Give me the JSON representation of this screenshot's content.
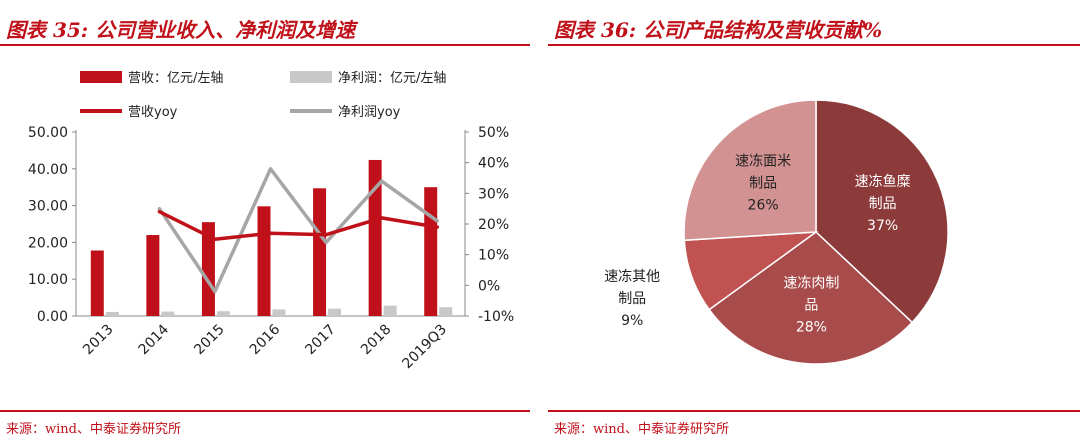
{
  "left": {
    "title": "图表 35: 公司营业收入、净利润及增速",
    "source": "来源：wind、中泰证券研究所"
  },
  "right": {
    "title": "图表 36: 公司产品结构及营收贡献%",
    "source": "来源：wind、中泰证券研究所"
  },
  "colors": {
    "accent": "#c0111a",
    "revenue_bar": "#c0111a",
    "profit_bar": "#c8c8c8",
    "revenue_line": "#c0111a",
    "profit_line": "#a6a6a6"
  },
  "chart_data": [
    {
      "type": "bar",
      "categories": [
        "2013",
        "2014",
        "2015",
        "2016",
        "2017",
        "2018",
        "2019Q3"
      ],
      "series": [
        {
          "name": "营收：亿元/左轴",
          "type": "bar",
          "axis": "left",
          "values": [
            17.8,
            22.0,
            25.5,
            29.8,
            34.7,
            42.4,
            35.0
          ]
        },
        {
          "name": "净利润：亿元/左轴",
          "type": "bar",
          "axis": "left",
          "values": [
            1.1,
            1.2,
            1.3,
            1.8,
            2.0,
            2.8,
            2.4
          ]
        },
        {
          "name": "营收yoy",
          "type": "line",
          "axis": "right",
          "values": [
            null,
            0.24,
            0.15,
            0.17,
            0.165,
            0.22,
            0.19
          ]
        },
        {
          "name": "净利润yoy",
          "type": "line",
          "axis": "right",
          "values": [
            null,
            0.25,
            -0.02,
            0.38,
            0.14,
            0.34,
            0.21
          ]
        }
      ],
      "yleft": {
        "ticks": [
          "0.00",
          "10.00",
          "20.00",
          "30.00",
          "40.00",
          "50.00"
        ],
        "range": [
          0,
          50
        ]
      },
      "yright": {
        "ticks": [
          "-10%",
          "0%",
          "10%",
          "20%",
          "30%",
          "40%",
          "50%"
        ],
        "range": [
          -0.1,
          0.5
        ]
      },
      "legend": "top"
    },
    {
      "type": "pie",
      "labels": [
        "速冻鱼糜制品",
        "速冻肉制品",
        "速冻其他制品",
        "速冻面米制品"
      ],
      "label_lines": [
        [
          "速冻鱼糜",
          "制品"
        ],
        [
          "速冻肉制",
          "品"
        ],
        [
          "速冻其他",
          "制品"
        ],
        [
          "速冻面米",
          "制品"
        ]
      ],
      "values": [
        37,
        28,
        9,
        26
      ],
      "value_labels": [
        "37%",
        "28%",
        "9%",
        "26%"
      ],
      "colors": [
        "#8c3a3a",
        "#a84b4b",
        "#c05252",
        "#d29292"
      ]
    }
  ]
}
